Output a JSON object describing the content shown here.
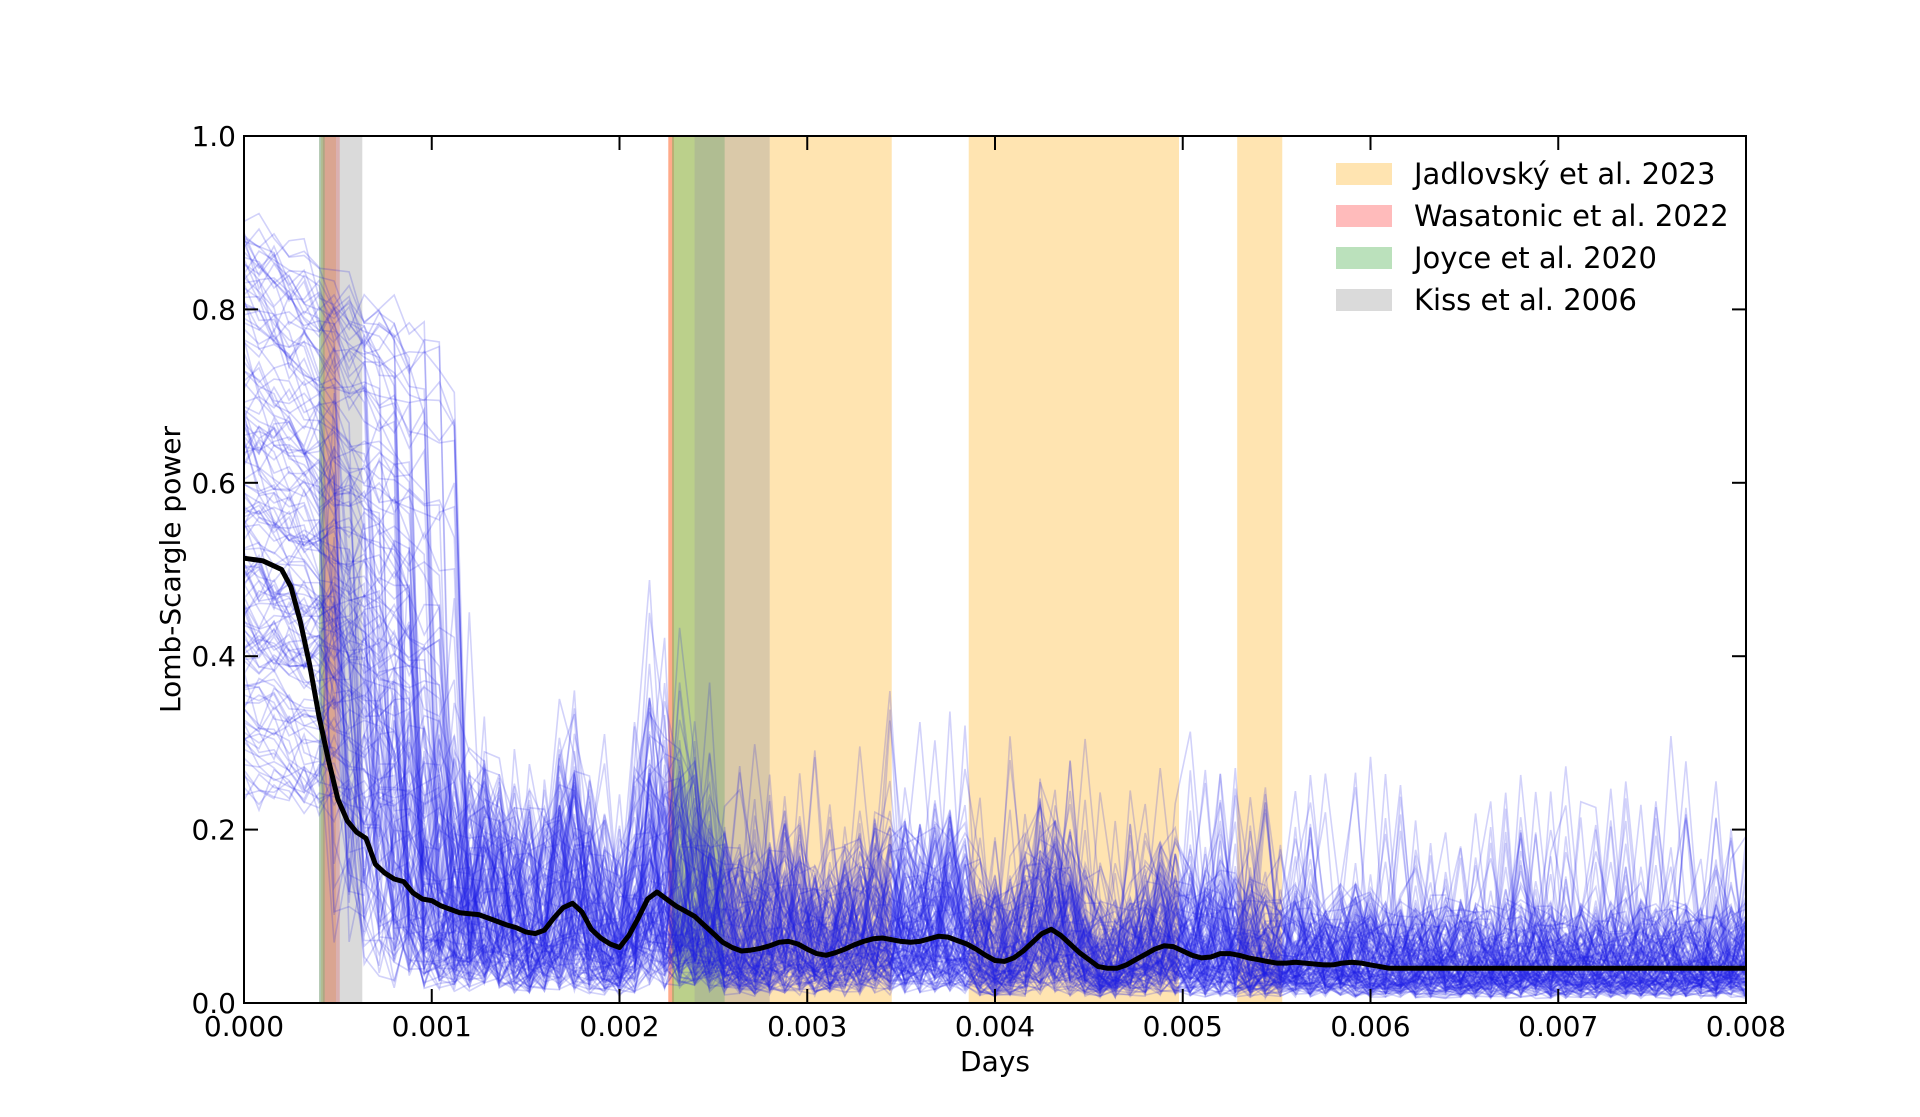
{
  "chart_data": {
    "type": "line",
    "title": "",
    "xlabel": "Days",
    "ylabel": "Lomb-Scargle power",
    "xlim": [
      0.0,
      0.008
    ],
    "ylim": [
      0.0,
      1.0
    ],
    "x_ticks": [
      "0.000",
      "0.001",
      "0.002",
      "0.003",
      "0.004",
      "0.005",
      "0.006",
      "0.007",
      "0.008"
    ],
    "y_ticks": [
      "0.0",
      "0.2",
      "0.4",
      "0.6",
      "0.8",
      "1.0"
    ],
    "grid": false,
    "legend_position": "top-right",
    "bands": [
      {
        "group": "Jadlovský et al. 2023",
        "x0": 0.00041,
        "x1": 0.00049
      },
      {
        "group": "Jadlovský et al. 2023",
        "x0": 0.00226,
        "x1": 0.0028
      },
      {
        "group": "Jadlovský et al. 2023",
        "x0": 0.0028,
        "x1": 0.00345
      },
      {
        "group": "Jadlovský et al. 2023",
        "x0": 0.00386,
        "x1": 0.00498
      },
      {
        "group": "Jadlovský et al. 2023",
        "x0": 0.00529,
        "x1": 0.00553
      },
      {
        "group": "Wasatonic et al. 2022",
        "x0": 0.00042,
        "x1": 0.00051
      },
      {
        "group": "Wasatonic et al. 2022",
        "x0": 0.00226,
        "x1": 0.00229
      },
      {
        "group": "Joyce et al. 2020",
        "x0": 0.0004,
        "x1": 0.00043
      },
      {
        "group": "Joyce et al. 2020",
        "x0": 0.00228,
        "x1": 0.00256
      },
      {
        "group": "Kiss et al. 2006",
        "x0": 0.0004,
        "x1": 0.00063
      },
      {
        "group": "Kiss et al. 2006",
        "x0": 0.0024,
        "x1": 0.0028
      }
    ],
    "legend": [
      {
        "label": "Jadlovský et al. 2023",
        "color": "#ffb833"
      },
      {
        "label": "Wasatonic et al. 2022",
        "color": "#ff4d4d"
      },
      {
        "label": "Joyce et al. 2020",
        "color": "#4caf50"
      },
      {
        "label": "Kiss et al. 2006",
        "color": "#9e9e9e"
      }
    ],
    "band_opacity": 0.38,
    "sample_curves": {
      "count": 150,
      "color": "#2020e6",
      "opacity": 0.2,
      "seed": 1234567
    },
    "mean_curve": {
      "color": "#000000",
      "x": [
        0.0,
        0.0001,
        0.0002,
        0.00025,
        0.0003,
        0.00035,
        0.0004,
        0.00045,
        0.0005,
        0.00055,
        0.0006,
        0.00065,
        0.0007,
        0.00075,
        0.0008,
        0.00085,
        0.0009,
        0.00095,
        0.001,
        0.00105,
        0.0011,
        0.00115,
        0.0012,
        0.00125,
        0.0013,
        0.00135,
        0.0014,
        0.00145,
        0.0015,
        0.00155,
        0.0016,
        0.00165,
        0.0017,
        0.00175,
        0.0018,
        0.00185,
        0.0019,
        0.00195,
        0.002,
        0.00205,
        0.0021,
        0.00215,
        0.0022,
        0.00225,
        0.0023,
        0.00235,
        0.0024,
        0.00245,
        0.0025,
        0.00255,
        0.0026,
        0.00265,
        0.0027,
        0.00275,
        0.0028,
        0.00285,
        0.0029,
        0.00295,
        0.003,
        0.00305,
        0.0031,
        0.00315,
        0.0032,
        0.00325,
        0.0033,
        0.00335,
        0.0034,
        0.00345,
        0.0035,
        0.00355,
        0.0036,
        0.00365,
        0.0037,
        0.00375,
        0.0038,
        0.00385,
        0.0039,
        0.00395,
        0.004,
        0.00405,
        0.0041,
        0.00415,
        0.0042,
        0.00425,
        0.0043,
        0.00435,
        0.0044,
        0.00445,
        0.0045,
        0.00455,
        0.0046,
        0.00465,
        0.0047,
        0.00475,
        0.0048,
        0.00485,
        0.0049,
        0.00495,
        0.005,
        0.00505,
        0.0051,
        0.00515,
        0.0052,
        0.00525,
        0.0053,
        0.00535,
        0.0054,
        0.00545,
        0.0055,
        0.00555,
        0.0056,
        0.00565,
        0.0057,
        0.00575,
        0.0058,
        0.00585,
        0.0059,
        0.00595,
        0.006,
        0.00605,
        0.0061,
        0.00615,
        0.0062,
        0.00625,
        0.0063,
        0.00635,
        0.0064,
        0.00645,
        0.0065,
        0.00655,
        0.0066,
        0.00665,
        0.0067,
        0.00675,
        0.0068,
        0.00685,
        0.0069,
        0.00695,
        0.007,
        0.00705,
        0.0071,
        0.00715,
        0.0072,
        0.00725,
        0.0073,
        0.00735,
        0.0074,
        0.00745,
        0.0075,
        0.00755,
        0.0076,
        0.00765,
        0.0077,
        0.00775,
        0.0078,
        0.00785,
        0.0079,
        0.00795,
        0.008
      ],
      "y": [
        0.513,
        0.51,
        0.5,
        0.48,
        0.44,
        0.39,
        0.33,
        0.28,
        0.235,
        0.21,
        0.197,
        0.19,
        0.16,
        0.15,
        0.143,
        0.14,
        0.127,
        0.12,
        0.118,
        0.112,
        0.108,
        0.104,
        0.103,
        0.102,
        0.098,
        0.094,
        0.09,
        0.087,
        0.082,
        0.08,
        0.084,
        0.098,
        0.11,
        0.115,
        0.105,
        0.085,
        0.075,
        0.068,
        0.064,
        0.078,
        0.098,
        0.12,
        0.128,
        0.12,
        0.112,
        0.106,
        0.1,
        0.09,
        0.08,
        0.07,
        0.064,
        0.06,
        0.061,
        0.063,
        0.066,
        0.07,
        0.071,
        0.068,
        0.062,
        0.057,
        0.055,
        0.058,
        0.062,
        0.067,
        0.071,
        0.074,
        0.075,
        0.073,
        0.071,
        0.07,
        0.071,
        0.074,
        0.077,
        0.076,
        0.072,
        0.068,
        0.062,
        0.055,
        0.049,
        0.048,
        0.052,
        0.06,
        0.07,
        0.08,
        0.085,
        0.078,
        0.068,
        0.058,
        0.05,
        0.042,
        0.04,
        0.04,
        0.044,
        0.05,
        0.056,
        0.062,
        0.066,
        0.065,
        0.06,
        0.055,
        0.052,
        0.053,
        0.057,
        0.057,
        0.055,
        0.052,
        0.05,
        0.048,
        0.046,
        0.046,
        0.047,
        0.046,
        0.045,
        0.044,
        0.044,
        0.046,
        0.047,
        0.046,
        0.044,
        0.042,
        0.04,
        0.04,
        0.04,
        0.04,
        0.04,
        0.04,
        0.04,
        0.04,
        0.04,
        0.04,
        0.04,
        0.04,
        0.04,
        0.04,
        0.04,
        0.04,
        0.04,
        0.04,
        0.04,
        0.04,
        0.04,
        0.04,
        0.04,
        0.04,
        0.04,
        0.04,
        0.04,
        0.04,
        0.04,
        0.04,
        0.04,
        0.04,
        0.04,
        0.04,
        0.04,
        0.04,
        0.04,
        0.04,
        0.04
      ]
    }
  }
}
